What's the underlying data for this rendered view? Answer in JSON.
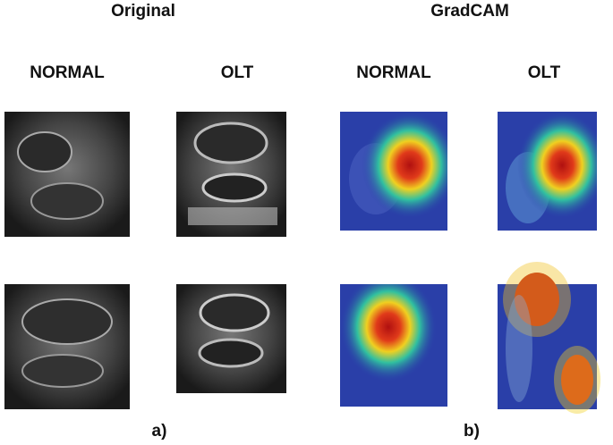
{
  "headers": {
    "original": "Original",
    "gradcam": "GradCAM"
  },
  "columns": [
    "NORMAL",
    "OLT",
    "NORMAL",
    "OLT"
  ],
  "panels": [
    "a)",
    "b)"
  ]
}
